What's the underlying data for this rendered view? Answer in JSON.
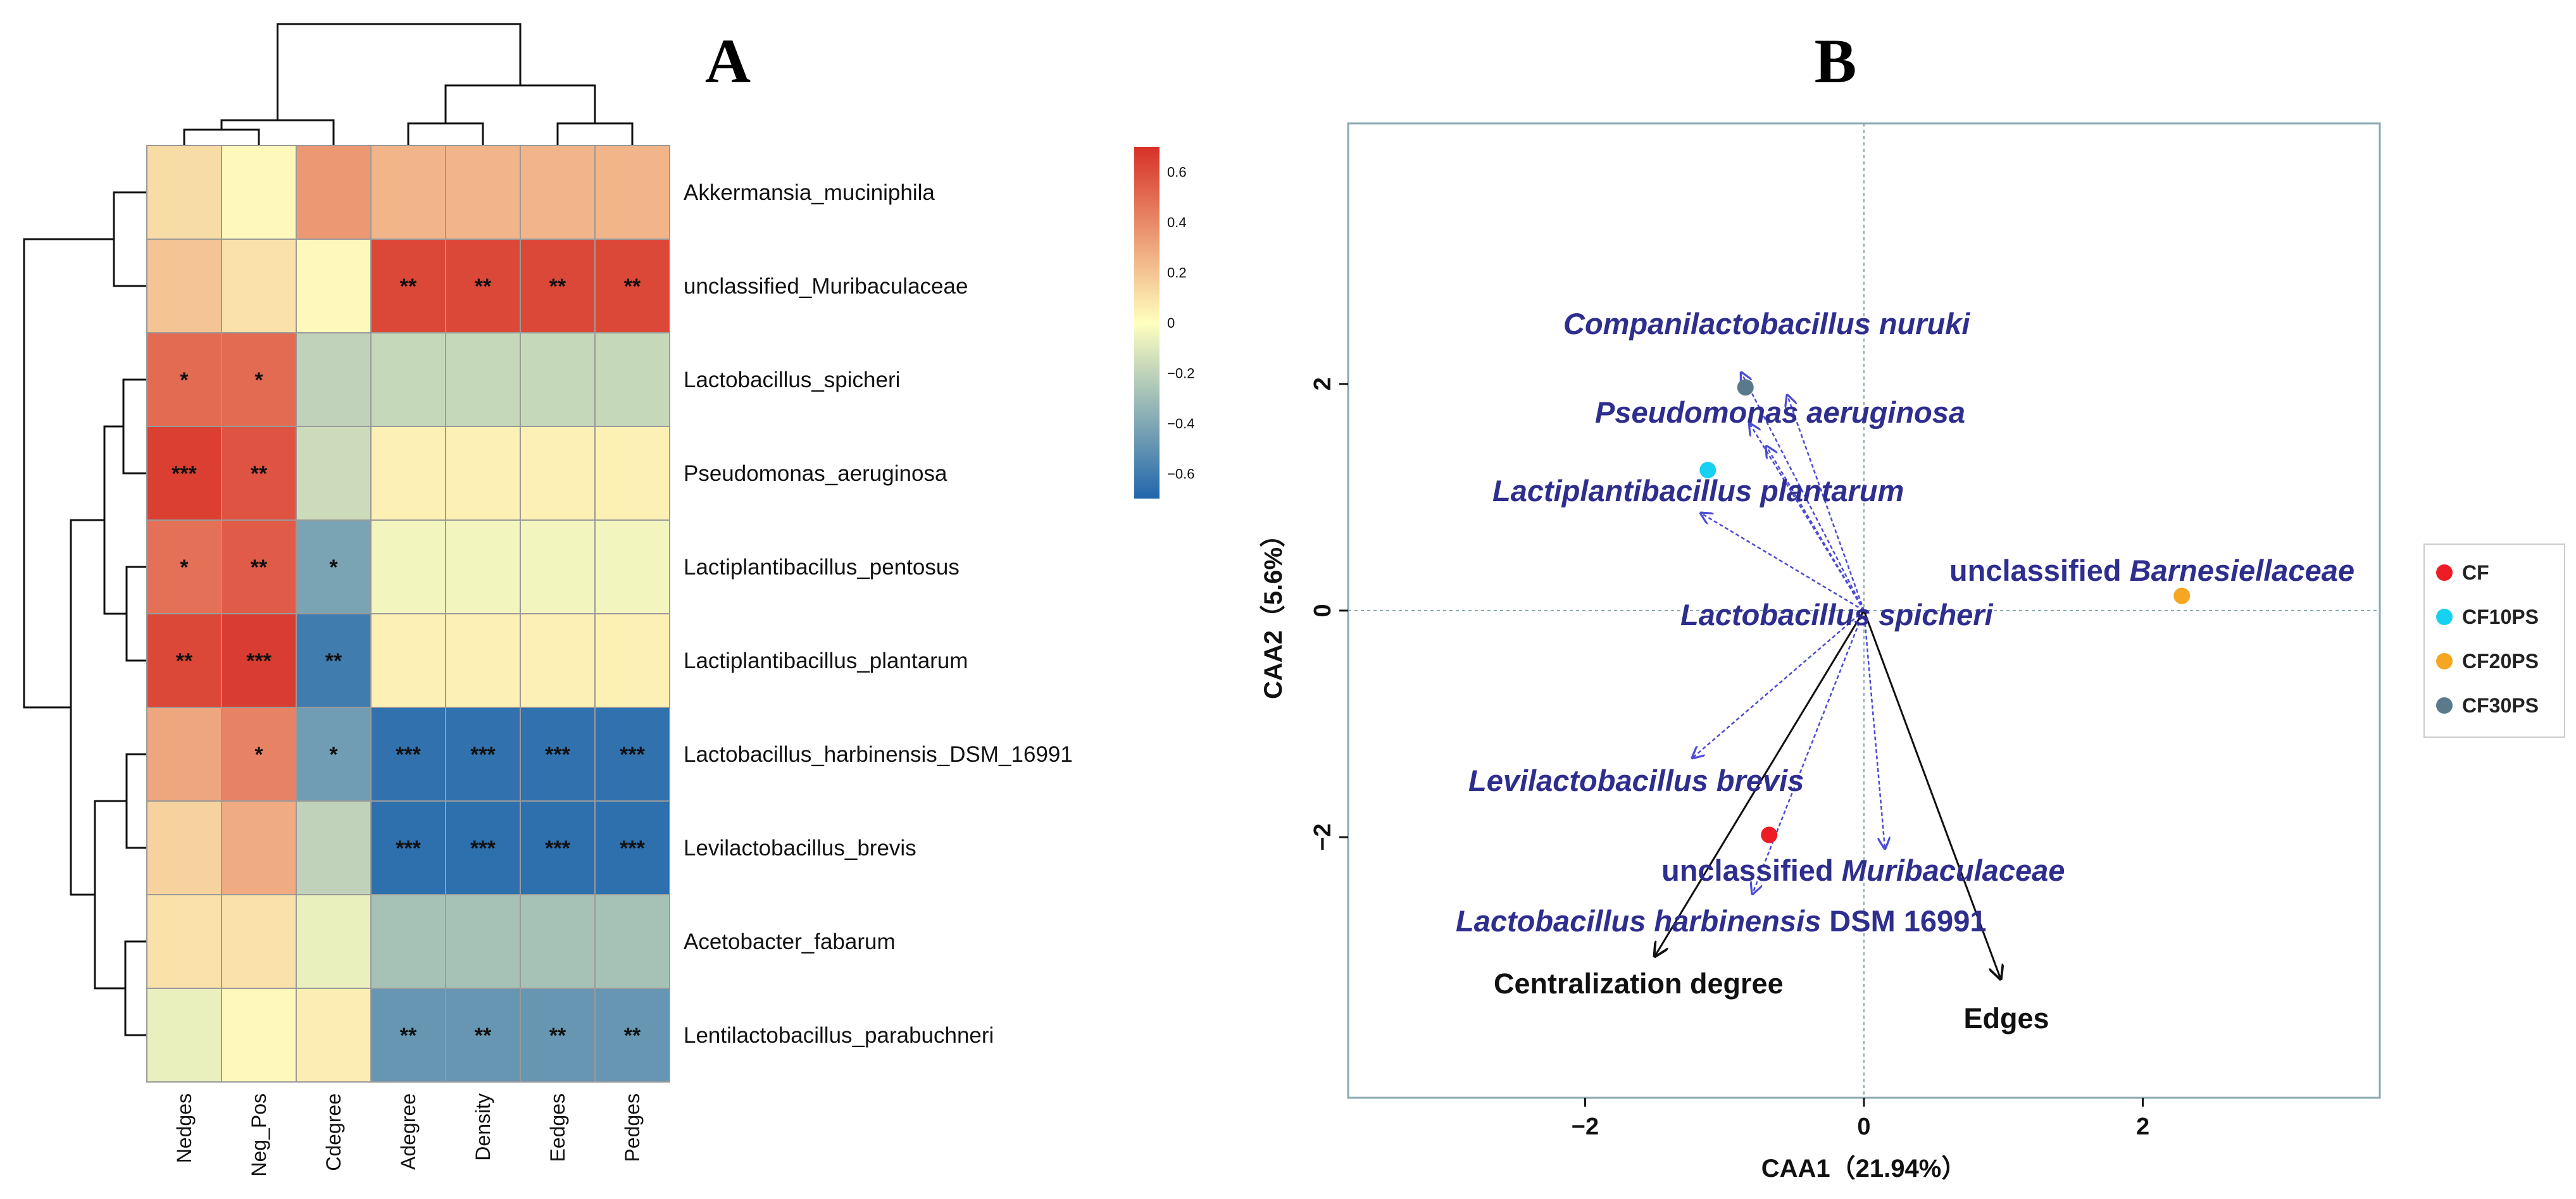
{
  "panels": {
    "a_letter": "A",
    "b_letter": "B"
  },
  "chart_data": [
    {
      "type": "heatmap",
      "columns": [
        "Nedges",
        "Neg_Pos",
        "Cdegree",
        "Adegree",
        "Density",
        "Eedges",
        "Pedges"
      ],
      "rows": [
        "Akkermansia_muciniphila",
        "unclassified_Muribaculaceae",
        "Lactobacillus_spicheri",
        "Pseudomonas_aeruginosa",
        "Lactiplantibacillus_pentosus",
        "Lactiplantibacillus_plantarum",
        "Lactobacillus_harbinensis_DSM_16991",
        "Levilactobacillus_brevis",
        "Acetobacter_fabarum",
        "Lentilactobacillus_parabuchneri"
      ],
      "values": [
        [
          0.12,
          0.02,
          0.35,
          0.25,
          0.25,
          0.25,
          0.25
        ],
        [
          0.2,
          0.1,
          0.02,
          0.62,
          0.62,
          0.62,
          0.62
        ],
        [
          0.5,
          0.5,
          -0.2,
          -0.18,
          -0.18,
          -0.18,
          -0.18
        ],
        [
          0.65,
          0.58,
          -0.16,
          0.05,
          0.05,
          0.05,
          0.05
        ],
        [
          0.48,
          0.55,
          -0.42,
          -0.04,
          -0.04,
          -0.04,
          -0.04
        ],
        [
          0.62,
          0.66,
          -0.6,
          0.05,
          0.05,
          0.05,
          0.05
        ],
        [
          0.3,
          0.42,
          -0.45,
          -0.65,
          -0.65,
          -0.65,
          -0.65
        ],
        [
          0.15,
          0.28,
          -0.2,
          -0.66,
          -0.66,
          -0.66,
          -0.66
        ],
        [
          0.1,
          0.1,
          -0.07,
          -0.28,
          -0.28,
          -0.28,
          -0.28
        ],
        [
          -0.07,
          0.02,
          0.06,
          -0.48,
          -0.48,
          -0.48,
          -0.48
        ]
      ],
      "significance": [
        [
          "",
          "",
          "",
          "",
          "",
          "",
          ""
        ],
        [
          "",
          "",
          "",
          "**",
          "**",
          "**",
          "**"
        ],
        [
          "*",
          "*",
          "",
          "",
          "",
          "",
          ""
        ],
        [
          "***",
          "**",
          "",
          "",
          "",
          "",
          ""
        ],
        [
          "*",
          "**",
          "*",
          "",
          "",
          "",
          ""
        ],
        [
          "**",
          "***",
          "**",
          "",
          "",
          "",
          ""
        ],
        [
          "",
          "*",
          "*",
          "***",
          "***",
          "***",
          "***"
        ],
        [
          "",
          "",
          "",
          "***",
          "***",
          "***",
          "***"
        ],
        [
          "",
          "",
          "",
          "",
          "",
          "",
          ""
        ],
        [
          "",
          "",
          "",
          "**",
          "**",
          "**",
          "**"
        ]
      ],
      "color_scale": {
        "min": -0.7,
        "max": 0.7,
        "low": "#2166ac",
        "mid": "#ffffbf",
        "high": "#d73027"
      },
      "legend_ticks": [
        "0.6",
        "0.4",
        "0.2",
        "0",
        "−0.2",
        "−0.4",
        "−0.6"
      ],
      "legend_values": [
        0.6,
        0.4,
        0.2,
        0,
        -0.2,
        -0.4,
        -0.6
      ]
    },
    {
      "type": "scatter",
      "xlabel": "CAA1（21.94%）",
      "ylabel": "CAA2（5.6%）",
      "xlim": [
        -3.7,
        3.7
      ],
      "ylim": [
        -4.3,
        4.3
      ],
      "xticks": [
        -2,
        0,
        2
      ],
      "xtick_labels": [
        "−2",
        "0",
        "2"
      ],
      "yticks": [
        -2,
        0,
        2
      ],
      "ytick_labels": [
        "−2",
        "0",
        "2"
      ],
      "groups": [
        {
          "name": "CF",
          "color": "#ee1c25",
          "x": -0.68,
          "y": -1.98
        },
        {
          "name": "CF10PS",
          "color": "#16d2f0",
          "x": -1.12,
          "y": 1.24
        },
        {
          "name": "CF20PS",
          "color": "#f5a623",
          "x": 2.28,
          "y": 0.13
        },
        {
          "name": "CF30PS",
          "color": "#5a7a8c",
          "x": -0.85,
          "y": 1.97
        }
      ],
      "species_arrows": [
        {
          "name_parts": [
            "Companilactobacillus nuruki"
          ],
          "x": -0.88,
          "y": 2.1
        },
        {
          "name_parts": [
            "Pseudomonas aeruginosa"
          ],
          "x": -0.82,
          "y": 1.65
        },
        {
          "name_parts": [
            "Lactiplantibacillus plantarum"
          ],
          "x": -1.17,
          "y": 0.86
        },
        {
          "name_parts": [
            "Lactobacillus spicheri"
          ],
          "x": -0.7,
          "y": 1.45
        },
        {
          "name_parts": [
            "unclassified ",
            "Barnesiellaceae"
          ],
          "x": -0.55,
          "y": 1.9
        },
        {
          "name_parts": [
            "Levilactobacillus brevis"
          ],
          "x": -1.23,
          "y": -1.3
        },
        {
          "name_parts": [
            "unclassified ",
            "Muribaculaceae"
          ],
          "x": 0.15,
          "y": -2.1
        },
        {
          "name_parts": [
            "Lactobacillus harbinensis",
            " DSM 16991"
          ],
          "x": -0.8,
          "y": -2.5
        }
      ],
      "env_arrows": [
        {
          "name": "Centralization degree",
          "x": -1.5,
          "y": -3.05
        },
        {
          "name": "Edges",
          "x": 0.98,
          "y": -3.25
        }
      ]
    }
  ]
}
